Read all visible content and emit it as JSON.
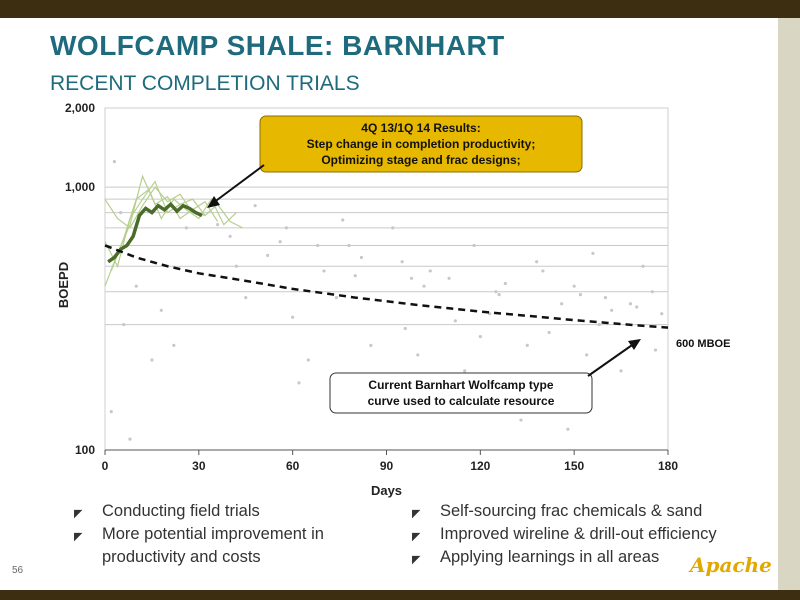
{
  "slide": {
    "title": "WOLFCAMP SHALE: BARNHART",
    "subtitle": "RECENT COMPLETION TRIALS",
    "page_number": "56",
    "logo_text": "Apache"
  },
  "bullets_left": [
    "Conducting field trials",
    "More potential improvement in productivity and costs"
  ],
  "bullets_right": [
    "Self-sourcing frac chemicals & sand",
    "Improved wireline & drill-out efficiency",
    "Applying learnings in all areas"
  ],
  "colors": {
    "title": "#1d6b7d",
    "annotation_fill": "#e6b800",
    "trial_avg": "#4a6b2a",
    "trial_wells": "#b6cf8e",
    "scatter": "#c8c8c8",
    "accent_bar": "#3d2e12"
  },
  "chart_data": {
    "type": "scatter",
    "xlabel": "Days",
    "ylabel": "BOEPD",
    "xlim": [
      0,
      180
    ],
    "ylim": [
      100,
      2000
    ],
    "y_scale": "log",
    "x_ticks": [
      0,
      30,
      60,
      90,
      120,
      150,
      180
    ],
    "y_ticks": [
      {
        "value": 100,
        "label": "100"
      },
      {
        "value": 1000,
        "label": "1,000"
      },
      {
        "value": 2000,
        "label": "2,000"
      }
    ],
    "y_gridlines": [
      300,
      400,
      500,
      600,
      700,
      800,
      900,
      1000
    ],
    "series": [
      {
        "name": "",
        "kind": "dashed-line",
        "x": [
          0,
          10,
          20,
          30,
          40,
          50,
          60,
          70,
          80,
          90,
          100,
          110,
          120,
          130,
          140,
          150,
          160,
          170,
          180
        ],
        "y": [
          600,
          540,
          500,
          470,
          450,
          430,
          410,
          395,
          380,
          368,
          356,
          346,
          336,
          328,
          320,
          312,
          305,
          298,
          292
        ]
      },
      {
        "name": "",
        "kind": "bold-line",
        "x": [
          1,
          3,
          5,
          7,
          9,
          11,
          13,
          15,
          17,
          19,
          21,
          23,
          25,
          27,
          29,
          31
        ],
        "y": [
          520,
          540,
          580,
          600,
          650,
          780,
          830,
          800,
          850,
          820,
          860,
          810,
          850,
          830,
          800,
          780
        ]
      },
      {
        "name": "",
        "kind": "thin-lines",
        "lines": [
          {
            "x": [
              0,
              4,
              8,
              12,
              16,
              20,
              24,
              28,
              32,
              36,
              40,
              44
            ],
            "y": [
              900,
              760,
              700,
              850,
              1000,
              880,
              940,
              800,
              780,
              860,
              740,
              700
            ]
          },
          {
            "x": [
              0,
              4,
              8,
              12,
              16,
              20,
              24,
              28,
              32,
              36
            ],
            "y": [
              420,
              560,
              720,
              1100,
              860,
              920,
              760,
              820,
              880,
              740
            ]
          },
          {
            "x": [
              2,
              6,
              10,
              14,
              18,
              22,
              26,
              30,
              34,
              38,
              42
            ],
            "y": [
              480,
              640,
              900,
              980,
              760,
              900,
              820,
              760,
              900,
              720,
              800
            ]
          },
          {
            "x": [
              0,
              4,
              8,
              12,
              16,
              20,
              24,
              28,
              32
            ],
            "y": [
              620,
              500,
              760,
              900,
              1050,
              800,
              860,
              900,
              780
            ]
          }
        ]
      },
      {
        "name": "",
        "kind": "points",
        "x": [
          5,
          10,
          18,
          22,
          3,
          40,
          52,
          58,
          70,
          78,
          95,
          110,
          125,
          140,
          150,
          160,
          170,
          45,
          65,
          85,
          100,
          115,
          130,
          145,
          165,
          175,
          2,
          8,
          62,
          88,
          108,
          133,
          148,
          68,
          92,
          118,
          138,
          156,
          172,
          48,
          76,
          98,
          123,
          158,
          26,
          36,
          56,
          82,
          104,
          128,
          152,
          168,
          178,
          6,
          15,
          74,
          112,
          142,
          60,
          96,
          120,
          135,
          154,
          176,
          42,
          80,
          102,
          126,
          146,
          162
        ],
        "y": [
          800,
          420,
          340,
          250,
          1250,
          650,
          550,
          700,
          480,
          600,
          520,
          450,
          400,
          480,
          420,
          380,
          350,
          380,
          220,
          250,
          230,
          200,
          180,
          170,
          200,
          400,
          140,
          110,
          180,
          160,
          140,
          130,
          120,
          600,
          700,
          600,
          520,
          560,
          500,
          850,
          750,
          450,
          330,
          300,
          700,
          720,
          620,
          540,
          480,
          430,
          390,
          360,
          330,
          300,
          220,
          380,
          310,
          280,
          320,
          290,
          270,
          250,
          230,
          240,
          500,
          460,
          420,
          390,
          360,
          340
        ]
      }
    ],
    "annotations": [
      {
        "text_lines": [
          "4Q 13/1Q 14 Results:",
          "Step change in completion productivity;",
          "Optimizing stage and frac designs;"
        ],
        "style": "yellow-box"
      },
      {
        "text_lines": [
          "Current Barnhart Wolfcamp type",
          "curve used to calculate resource"
        ],
        "style": "white-box"
      },
      {
        "text": "600 MBOE",
        "style": "label"
      }
    ]
  }
}
